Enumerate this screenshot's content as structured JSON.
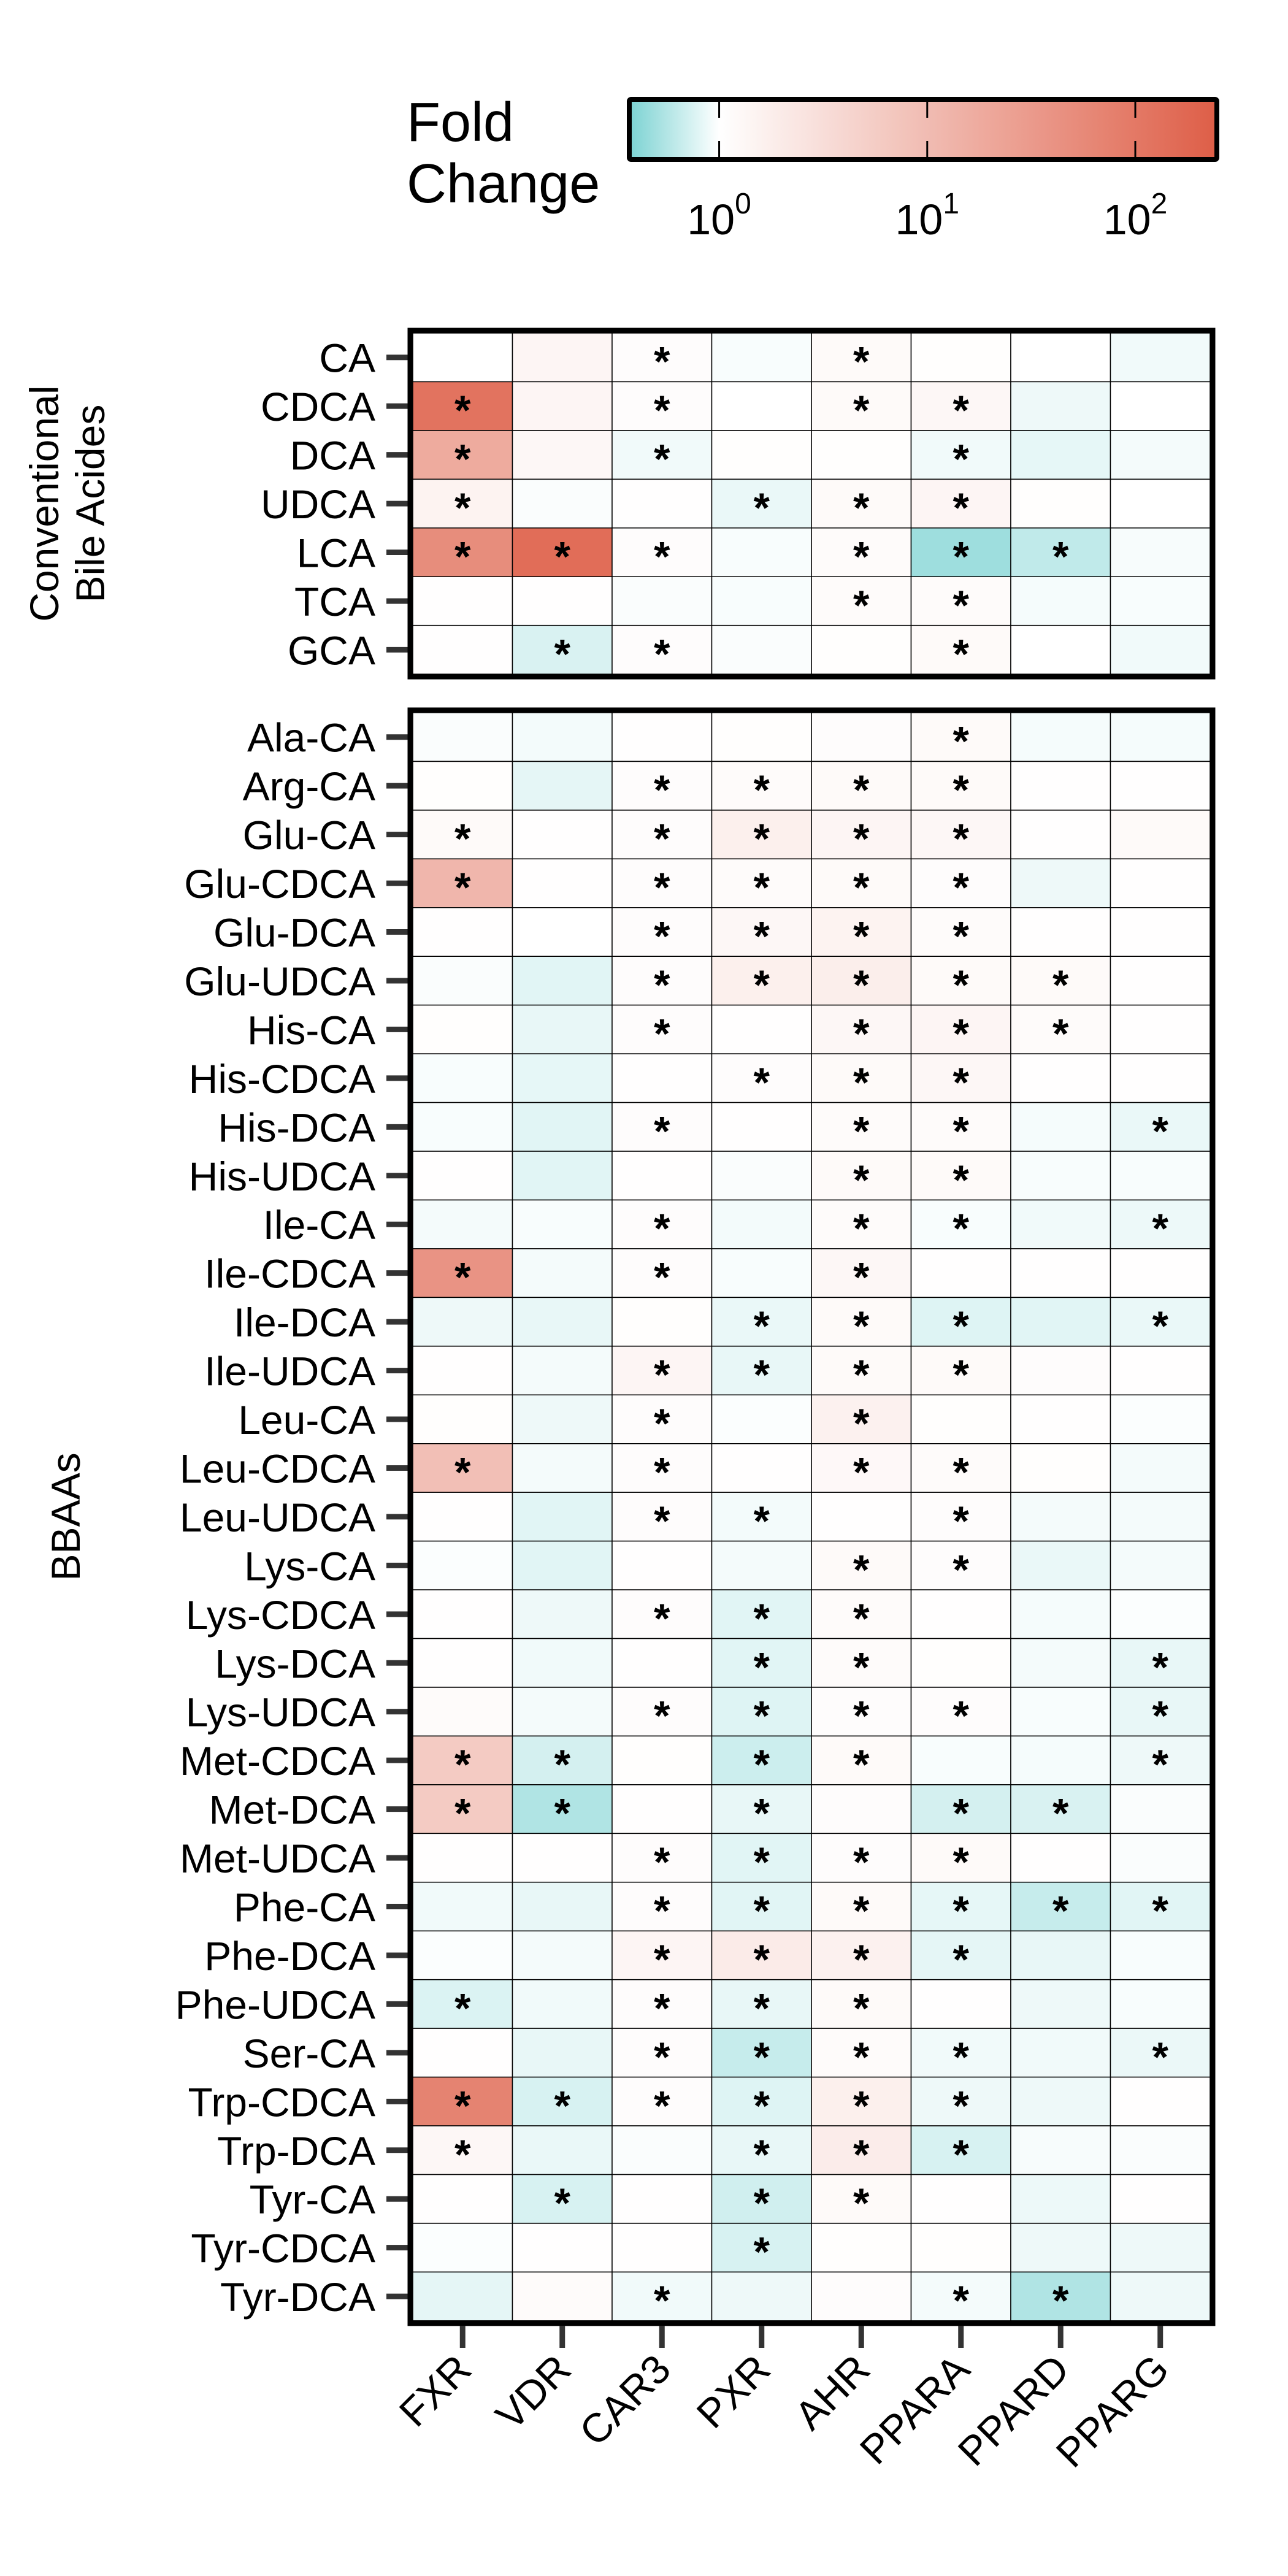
{
  "chart_data": {
    "type": "heatmap",
    "title": "",
    "legend": {
      "title_lines": [
        "Fold",
        "Change"
      ],
      "scale": "log10",
      "range": [
        0.38,
        240
      ],
      "ticks": [
        {
          "value": 1,
          "base": "10",
          "exp": "0"
        },
        {
          "value": 10,
          "base": "10",
          "exp": "1"
        },
        {
          "value": 100,
          "base": "10",
          "exp": "2"
        }
      ],
      "low_color": "#7fd4d4",
      "mid_color": "#ffffff",
      "high_color": "#de5f48",
      "placement": "top-right"
    },
    "significance_marker": "*",
    "marker_colors": {
      "up": "#7a2417",
      "down": "#0f5546"
    },
    "columns": [
      "FXR",
      "VDR",
      "CAR3",
      "PXR",
      "AHR",
      "PPARA",
      "PPARD",
      "PPARG"
    ],
    "groups": [
      {
        "label_lines": [
          "Conventional",
          "Bile Acides"
        ],
        "rows": [
          {
            "name": "CA",
            "values": [
              1.0,
              1.4,
              1.1,
              0.95,
              1.2,
              1.05,
              1.0,
              0.9
            ],
            "sig": [
              0,
              0,
              1,
              0,
              1,
              0,
              0,
              0
            ]
          },
          {
            "name": "CDCA",
            "values": [
              120,
              1.4,
              1.1,
              1.0,
              1.2,
              1.3,
              0.88,
              1.0
            ],
            "sig": [
              1,
              0,
              1,
              0,
              1,
              1,
              0,
              0
            ]
          },
          {
            "name": "DCA",
            "values": [
              18,
              1.3,
              0.9,
              1.05,
              1.05,
              0.9,
              0.83,
              0.92
            ],
            "sig": [
              1,
              0,
              1,
              0,
              0,
              1,
              0,
              0
            ]
          },
          {
            "name": "UDCA",
            "values": [
              1.5,
              0.96,
              1.02,
              0.85,
              1.2,
              1.4,
              1.05,
              1.0
            ],
            "sig": [
              1,
              0,
              0,
              1,
              1,
              1,
              0,
              0
            ]
          },
          {
            "name": "LCA",
            "values": [
              50,
              150,
              1.1,
              0.95,
              1.15,
              0.48,
              0.62,
              0.94
            ],
            "sig": [
              1,
              1,
              1,
              0,
              1,
              1,
              1,
              0
            ]
          },
          {
            "name": "TCA",
            "values": [
              1.02,
              1.02,
              0.96,
              0.95,
              1.15,
              1.15,
              0.93,
              0.95
            ],
            "sig": [
              0,
              0,
              0,
              0,
              1,
              1,
              0,
              0
            ]
          },
          {
            "name": "GCA",
            "values": [
              1.02,
              0.75,
              1.1,
              0.96,
              1.05,
              1.2,
              1.0,
              0.9
            ],
            "sig": [
              0,
              1,
              1,
              0,
              0,
              1,
              0,
              0
            ]
          }
        ]
      },
      {
        "label_lines": [
          "BBAAs"
        ],
        "rows": [
          {
            "name": "Ala-CA",
            "values": [
              0.96,
              0.91,
              1.02,
              1.05,
              1.1,
              1.2,
              0.93,
              0.93
            ],
            "sig": [
              0,
              0,
              0,
              0,
              0,
              1,
              0,
              0
            ]
          },
          {
            "name": "Arg-CA",
            "values": [
              1.05,
              0.82,
              1.1,
              1.15,
              1.2,
              1.2,
              1.02,
              1.02
            ],
            "sig": [
              0,
              0,
              1,
              1,
              1,
              1,
              0,
              0
            ]
          },
          {
            "name": "Glu-CA",
            "values": [
              1.2,
              1.02,
              1.1,
              1.7,
              1.4,
              1.3,
              1.02,
              1.2
            ],
            "sig": [
              1,
              0,
              1,
              1,
              1,
              1,
              0,
              0
            ]
          },
          {
            "name": "Glu-CDCA",
            "values": [
              12,
              1.02,
              1.1,
              1.15,
              1.2,
              1.1,
              0.88,
              1.02
            ],
            "sig": [
              1,
              0,
              1,
              1,
              1,
              1,
              0,
              0
            ]
          },
          {
            "name": "Glu-DCA",
            "values": [
              1.03,
              1.0,
              1.1,
              1.3,
              1.5,
              1.15,
              1.02,
              1.02
            ],
            "sig": [
              0,
              0,
              1,
              1,
              1,
              1,
              0,
              0
            ]
          },
          {
            "name": "Glu-UDCA",
            "values": [
              0.96,
              0.8,
              1.1,
              1.7,
              1.8,
              1.2,
              1.2,
              1.02
            ],
            "sig": [
              0,
              0,
              1,
              1,
              1,
              1,
              1,
              0
            ]
          },
          {
            "name": "His-CA",
            "values": [
              1.05,
              0.84,
              1.1,
              1.02,
              1.3,
              1.4,
              1.15,
              1.02
            ],
            "sig": [
              0,
              0,
              1,
              0,
              1,
              1,
              1,
              0
            ]
          },
          {
            "name": "His-CDCA",
            "values": [
              0.95,
              0.83,
              1.02,
              1.1,
              1.2,
              1.3,
              1.02,
              1.02
            ],
            "sig": [
              0,
              0,
              0,
              1,
              1,
              1,
              0,
              0
            ]
          },
          {
            "name": "His-DCA",
            "values": [
              0.95,
              0.8,
              1.1,
              1.02,
              1.15,
              1.15,
              0.93,
              0.85
            ],
            "sig": [
              0,
              0,
              1,
              0,
              1,
              1,
              0,
              1
            ]
          },
          {
            "name": "His-UDCA",
            "values": [
              1.02,
              0.8,
              1.02,
              0.96,
              1.2,
              1.2,
              0.95,
              0.95
            ],
            "sig": [
              0,
              0,
              0,
              0,
              1,
              1,
              0,
              0
            ]
          },
          {
            "name": "Ile-CA",
            "values": [
              0.92,
              0.95,
              1.1,
              0.91,
              1.15,
              0.95,
              0.9,
              0.87
            ],
            "sig": [
              0,
              0,
              1,
              0,
              1,
              1,
              0,
              1
            ]
          },
          {
            "name": "Ile-CDCA",
            "values": [
              40,
              0.92,
              1.1,
              0.95,
              1.3,
              1.02,
              1.02,
              1.02
            ],
            "sig": [
              1,
              0,
              1,
              0,
              1,
              0,
              0,
              0
            ]
          },
          {
            "name": "Ile-DCA",
            "values": [
              0.88,
              0.84,
              1.05,
              0.85,
              1.2,
              0.78,
              0.8,
              0.85
            ],
            "sig": [
              0,
              0,
              0,
              1,
              1,
              1,
              0,
              1
            ]
          },
          {
            "name": "Ile-UDCA",
            "values": [
              1.02,
              0.92,
              1.4,
              0.84,
              1.2,
              1.2,
              1.1,
              1.02
            ],
            "sig": [
              0,
              0,
              1,
              1,
              1,
              1,
              0,
              0
            ]
          },
          {
            "name": "Leu-CA",
            "values": [
              1.05,
              0.88,
              1.1,
              0.97,
              1.6,
              1.05,
              1.02,
              0.97
            ],
            "sig": [
              0,
              0,
              1,
              0,
              1,
              0,
              0,
              0
            ]
          },
          {
            "name": "Leu-CDCA",
            "values": [
              9,
              0.92,
              1.1,
              1.02,
              1.25,
              1.15,
              1.05,
              0.92
            ],
            "sig": [
              1,
              0,
              1,
              0,
              1,
              1,
              0,
              0
            ]
          },
          {
            "name": "Leu-UDCA",
            "values": [
              1.02,
              0.8,
              1.1,
              0.91,
              1.02,
              1.1,
              0.92,
              0.92
            ],
            "sig": [
              0,
              0,
              1,
              1,
              0,
              1,
              0,
              0
            ]
          },
          {
            "name": "Lys-CA",
            "values": [
              0.97,
              0.8,
              1.02,
              0.92,
              1.2,
              1.1,
              0.85,
              0.92
            ],
            "sig": [
              0,
              0,
              0,
              0,
              1,
              1,
              0,
              0
            ]
          },
          {
            "name": "Lys-CDCA",
            "values": [
              1.02,
              0.88,
              1.1,
              0.8,
              1.15,
              1.02,
              0.93,
              0.97
            ],
            "sig": [
              0,
              0,
              1,
              1,
              1,
              0,
              0,
              0
            ]
          },
          {
            "name": "Lys-DCA",
            "values": [
              1.02,
              0.9,
              1.02,
              0.8,
              1.15,
              1.05,
              0.92,
              0.84
            ],
            "sig": [
              0,
              0,
              0,
              1,
              1,
              0,
              0,
              1
            ]
          },
          {
            "name": "Lys-UDCA",
            "values": [
              1.15,
              0.92,
              1.1,
              0.78,
              1.1,
              1.1,
              0.95,
              0.84
            ],
            "sig": [
              0,
              0,
              1,
              1,
              1,
              1,
              0,
              1
            ]
          },
          {
            "name": "Met-CDCA",
            "values": [
              6,
              0.72,
              1.05,
              0.68,
              1.2,
              0.95,
              0.93,
              0.88
            ],
            "sig": [
              1,
              1,
              0,
              1,
              1,
              0,
              0,
              1
            ]
          },
          {
            "name": "Met-DCA",
            "values": [
              6,
              0.55,
              1.02,
              0.84,
              1.1,
              0.72,
              0.75,
              0.96
            ],
            "sig": [
              1,
              1,
              0,
              1,
              0,
              1,
              1,
              0
            ]
          },
          {
            "name": "Met-UDCA",
            "values": [
              1.02,
              1.02,
              1.1,
              0.8,
              1.1,
              1.2,
              1.02,
              0.96
            ],
            "sig": [
              0,
              0,
              1,
              1,
              1,
              1,
              0,
              0
            ]
          },
          {
            "name": "Phe-CA",
            "values": [
              0.9,
              0.84,
              1.1,
              0.8,
              1.2,
              0.83,
              0.65,
              0.8
            ],
            "sig": [
              0,
              0,
              1,
              1,
              1,
              1,
              1,
              1
            ]
          },
          {
            "name": "Phe-DCA",
            "values": [
              0.97,
              0.92,
              1.4,
              2.0,
              1.6,
              0.82,
              0.84,
              0.95
            ],
            "sig": [
              0,
              0,
              1,
              1,
              1,
              1,
              0,
              0
            ]
          },
          {
            "name": "Phe-UDCA",
            "values": [
              0.76,
              0.9,
              1.1,
              0.84,
              1.2,
              1.02,
              0.88,
              0.95
            ],
            "sig": [
              1,
              0,
              1,
              1,
              1,
              0,
              0,
              0
            ]
          },
          {
            "name": "Ser-CA",
            "values": [
              1.02,
              0.84,
              1.1,
              0.65,
              1.15,
              0.9,
              0.9,
              0.86
            ],
            "sig": [
              0,
              0,
              1,
              1,
              1,
              1,
              0,
              1
            ]
          },
          {
            "name": "Trp-CDCA",
            "values": [
              70,
              0.74,
              1.1,
              0.78,
              1.7,
              0.88,
              0.88,
              1.02
            ],
            "sig": [
              1,
              1,
              1,
              1,
              1,
              1,
              0,
              0
            ]
          },
          {
            "name": "Trp-DCA",
            "values": [
              1.3,
              0.85,
              0.96,
              0.84,
              1.9,
              0.74,
              0.94,
              0.96
            ],
            "sig": [
              1,
              0,
              0,
              1,
              1,
              1,
              0,
              0
            ]
          },
          {
            "name": "Tyr-CA",
            "values": [
              1.04,
              0.74,
              1.04,
              0.7,
              1.2,
              1.02,
              0.87,
              1.02
            ],
            "sig": [
              0,
              1,
              0,
              1,
              1,
              0,
              0,
              0
            ]
          },
          {
            "name": "Tyr-CDCA",
            "values": [
              0.97,
              1.02,
              1.02,
              0.74,
              1.05,
              1.05,
              0.88,
              0.88
            ],
            "sig": [
              0,
              0,
              0,
              1,
              0,
              0,
              0,
              0
            ]
          },
          {
            "name": "Tyr-DCA",
            "values": [
              0.82,
              1.15,
              0.9,
              0.88,
              1.1,
              0.92,
              0.55,
              0.88
            ],
            "sig": [
              0,
              0,
              1,
              0,
              0,
              1,
              1,
              0
            ]
          }
        ]
      }
    ]
  }
}
